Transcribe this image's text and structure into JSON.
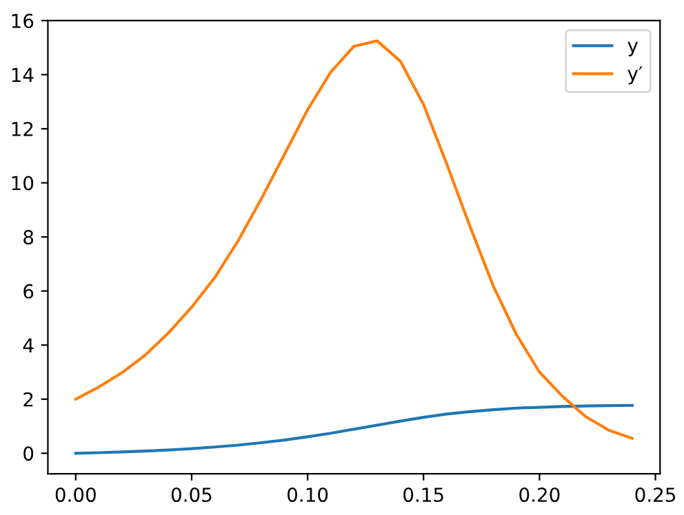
{
  "chart_data": {
    "type": "line",
    "x": [
      0,
      0.01,
      0.02,
      0.03,
      0.04,
      0.05,
      0.06,
      0.07,
      0.08,
      0.09,
      0.1,
      0.11,
      0.12,
      0.13,
      0.14,
      0.15,
      0.16,
      0.17,
      0.18,
      0.19,
      0.2,
      0.21,
      0.22,
      0.23,
      0.24
    ],
    "series": [
      {
        "name": "y",
        "color": "#1f77b4",
        "values": [
          0,
          0.02,
          0.05,
          0.08,
          0.12,
          0.17,
          0.23,
          0.3,
          0.39,
          0.49,
          0.61,
          0.74,
          0.89,
          1.04,
          1.19,
          1.33,
          1.45,
          1.54,
          1.61,
          1.67,
          1.7,
          1.73,
          1.75,
          1.76,
          1.77
        ]
      },
      {
        "name": "y′",
        "color": "#ff7f0e",
        "values": [
          2.0,
          2.45,
          2.98,
          3.63,
          4.45,
          5.4,
          6.5,
          7.85,
          9.4,
          11.05,
          12.7,
          14.1,
          15.05,
          15.25,
          14.5,
          12.9,
          10.7,
          8.4,
          6.2,
          4.4,
          3.0,
          2.1,
          1.35,
          0.85,
          0.55
        ]
      }
    ],
    "xlim": [
      -0.012,
      0.252
    ],
    "xticks": [
      {
        "value": 0,
        "label": "0.00"
      },
      0.05,
      {
        "value": 0.1,
        "label": "0.10"
      },
      0.15,
      {
        "value": 0.2,
        "label": "0.20"
      },
      0.25
    ],
    "ylim": [
      -0.76,
      16
    ],
    "yticks": [
      0,
      2,
      4,
      6,
      8,
      10,
      12,
      14,
      16
    ],
    "legend": "top right",
    "grid": false
  }
}
